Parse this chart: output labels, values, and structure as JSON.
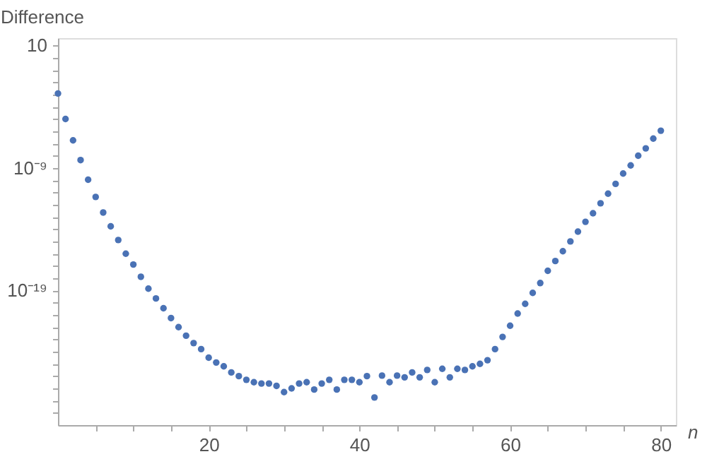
{
  "chart_data": {
    "type": "scatter",
    "ylabel": "Difference",
    "xlabel": "n",
    "log": "y",
    "grid": false,
    "marker": "circle",
    "xlim": [
      0,
      82
    ],
    "ylim": [
      1e-30,
      40
    ],
    "xticks": [
      {
        "value": 5,
        "label": null
      },
      {
        "value": 10,
        "label": null
      },
      {
        "value": 15,
        "label": null
      },
      20,
      {
        "value": 25,
        "label": null
      },
      {
        "value": 30,
        "label": null
      },
      {
        "value": 35,
        "label": null
      },
      40,
      {
        "value": 45,
        "label": null
      },
      {
        "value": 50,
        "label": null
      },
      {
        "value": 55,
        "label": null
      },
      60,
      {
        "value": 65,
        "label": null
      },
      {
        "value": 70,
        "label": null
      },
      {
        "value": 75,
        "label": null
      },
      80
    ],
    "yticks": [
      10,
      {
        "value": 1,
        "label": null
      },
      {
        "value": 0.1,
        "label": null
      },
      {
        "value": 0.01,
        "label": null
      },
      {
        "value": 0.001,
        "label": null
      },
      {
        "value": 0.0001,
        "label": null
      },
      {
        "value": 1e-05,
        "label": null
      },
      {
        "value": 1e-06,
        "label": null
      },
      {
        "value": 1e-07,
        "label": null
      },
      {
        "value": 1e-08,
        "label": null
      },
      {
        "value": 1e-09,
        "label": "10⁻⁹"
      },
      {
        "value": 1e-10,
        "label": null
      },
      {
        "value": 1e-11,
        "label": null
      },
      {
        "value": 1e-12,
        "label": null
      },
      {
        "value": 1e-13,
        "label": null
      },
      {
        "value": 1e-14,
        "label": null
      },
      {
        "value": 1e-15,
        "label": null
      },
      {
        "value": 1e-16,
        "label": null
      },
      {
        "value": 1e-17,
        "label": null
      },
      {
        "value": 1e-18,
        "label": null
      },
      {
        "value": 1e-19,
        "label": "10⁻¹⁹"
      },
      {
        "value": 1e-20,
        "label": null
      },
      {
        "value": 1e-21,
        "label": null
      },
      {
        "value": 1e-22,
        "label": null
      },
      {
        "value": 1e-23,
        "label": null
      },
      {
        "value": 1e-24,
        "label": null
      },
      {
        "value": 1e-25,
        "label": null
      },
      {
        "value": 1e-26,
        "label": null
      },
      {
        "value": 1e-27,
        "label": null
      },
      {
        "value": 1e-28,
        "label": null
      },
      {
        "value": 1e-29,
        "label": null
      }
    ],
    "x": [
      0,
      1,
      2,
      3,
      4,
      5,
      6,
      7,
      8,
      9,
      10,
      11,
      12,
      13,
      14,
      15,
      16,
      17,
      18,
      19,
      20,
      21,
      22,
      23,
      24,
      25,
      26,
      27,
      28,
      29,
      30,
      31,
      32,
      33,
      34,
      35,
      36,
      37,
      38,
      39,
      40,
      41,
      42,
      43,
      44,
      45,
      46,
      47,
      48,
      49,
      50,
      51,
      52,
      53,
      54,
      55,
      56,
      57,
      58,
      59,
      60,
      61,
      62,
      63,
      64,
      65,
      66,
      67,
      68,
      69,
      70,
      71,
      72,
      73,
      74,
      75,
      76,
      77,
      78,
      79,
      80
    ],
    "series": [
      {
        "color": "#4a72b5",
        "values": [
          0.0012,
          1e-05,
          1.8e-07,
          4.4e-09,
          1.1e-10,
          4.3e-12,
          2.3e-13,
          1.7e-14,
          1.3e-15,
          1e-16,
          1.3e-17,
          1.3e-18,
          1.4e-19,
          2.2e-20,
          3.5e-21,
          5.5e-22,
          1e-22,
          2e-23,
          5e-24,
          1.6e-24,
          3.2e-25,
          1.3e-25,
          6.3e-26,
          2e-26,
          1e-26,
          5e-27,
          3.2e-27,
          2.5e-27,
          2.5e-27,
          1.6e-27,
          5e-28,
          1e-27,
          2.5e-27,
          3.2e-27,
          8e-28,
          2.5e-27,
          5e-27,
          8e-28,
          5e-27,
          5e-27,
          3.2e-27,
          1e-26,
          1.8e-28,
          1.1e-26,
          3.2e-27,
          1.1e-26,
          8e-27,
          2e-26,
          8e-27,
          3.2e-26,
          3.2e-27,
          4e-26,
          8e-27,
          4e-26,
          3.2e-26,
          6.3e-26,
          1e-25,
          2e-25,
          1.6e-24,
          1.6e-23,
          1.3e-22,
          1.3e-21,
          8e-21,
          6.3e-20,
          4e-19,
          4e-18,
          2.5e-17,
          1.6e-16,
          1e-15,
          6.3e-15,
          4e-14,
          2e-13,
          1.3e-12,
          8e-12,
          5e-11,
          3.5e-10,
          1.6e-09,
          1e-08,
          4e-08,
          2.5e-07,
          1.1e-06
        ]
      }
    ]
  }
}
